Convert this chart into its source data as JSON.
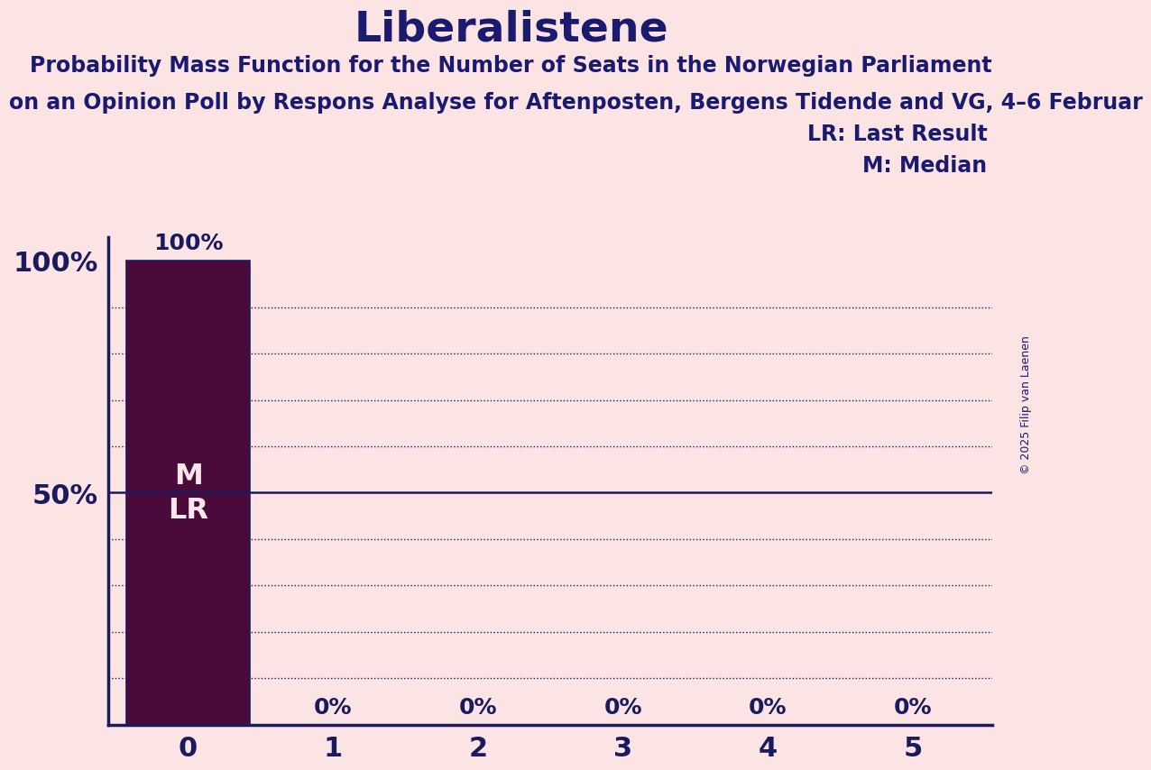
{
  "title": "Liberalistene",
  "subtitle1": "Probability Mass Function for the Number of Seats in the Norwegian Parliament",
  "subtitle2": "on an Opinion Poll by Respons Analyse for Aftenposten, Bergens Tidende and VG, 4–6 Februar",
  "copyright": "© 2025 Filip van Laenen",
  "background_color": "#fce4e4",
  "bar_color": "#4a0a3a",
  "bar_edge_color": "#1a1a5e",
  "categories": [
    0,
    1,
    2,
    3,
    4,
    5
  ],
  "values": [
    1.0,
    0.0,
    0.0,
    0.0,
    0.0,
    0.0
  ],
  "bar_labels": [
    "100%",
    "0%",
    "0%",
    "0%",
    "0%",
    "0%"
  ],
  "median": 0,
  "last_result": 0,
  "ylabel_ticks": [
    0.0,
    0.5,
    1.0
  ],
  "ylabel_labels": [
    "",
    "50%",
    "100%"
  ],
  "title_color": "#1a1a6e",
  "subtitle_color": "#1a1a6e",
  "axis_color": "#1a1a5e",
  "tick_color": "#1a1a5e",
  "grid_color": "#1a1a5e",
  "bar_label_color_on": "#fce4e4",
  "bar_label_color_off": "#1a1a5e",
  "bar_label_above_color": "#1a1a5e",
  "median_line_color": "#1a1a5e",
  "bar_width": 0.85,
  "title_fontsize": 34,
  "subtitle_fontsize": 17,
  "tick_fontsize": 22,
  "bar_label_fontsize": 18,
  "legend_fontsize": 17,
  "ml_fontsize": 23
}
